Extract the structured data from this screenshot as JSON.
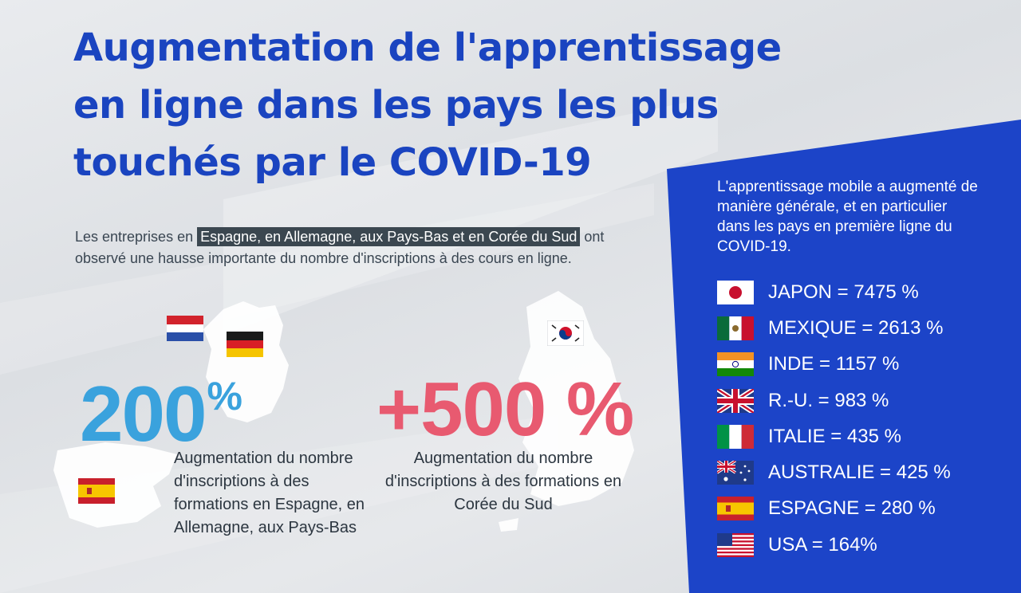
{
  "title": {
    "line1": "Augmentation de l'apprentissage",
    "line2": "en ligne dans les pays les plus",
    "line3": "touchés par le COVID-19"
  },
  "intro": {
    "before": "Les entreprises en ",
    "highlight": "Espagne, en Allemagne, aux Pays-Bas et en Corée du Sud",
    "after": " ont observé une hausse importante du nombre d'inscriptions à des cours en ligne."
  },
  "stats": {
    "europe": {
      "value": "200",
      "unit": "%",
      "description": "Augmentation du nombre d'inscriptions à des formations en Espagne, en Allemagne, aux Pays-Bas"
    },
    "korea": {
      "value": "+500 %",
      "description": "Augmentation du nombre d'inscriptions à des formations en Corée du Sud"
    }
  },
  "panel": {
    "intro": "L'apprentissage mobile a augmenté de manière générale, et en particulier dans les pays en première ligne du COVID-19.",
    "countries": [
      {
        "label": "JAPON = 7475 %",
        "flag": "japan-flag"
      },
      {
        "label": "MEXIQUE = 2613 %",
        "flag": "mexico-flag"
      },
      {
        "label": "INDE = 1157 %",
        "flag": "india-flag"
      },
      {
        "label": "R.-U. = 983 %",
        "flag": "uk-flag"
      },
      {
        "label": "ITALIE = 435 %",
        "flag": "italy-flag"
      },
      {
        "label": "AUSTRALIE = 425 %",
        "flag": "australia-flag"
      },
      {
        "label": "ESPAGNE = 280 %",
        "flag": "spain-flag"
      },
      {
        "label": "USA = 164%",
        "flag": "usa-flag"
      }
    ]
  },
  "colors": {
    "title": "#1a44c0",
    "panel": "#1c44c8",
    "stat_europe": "#3aa2dd",
    "stat_korea": "#e85a70"
  }
}
